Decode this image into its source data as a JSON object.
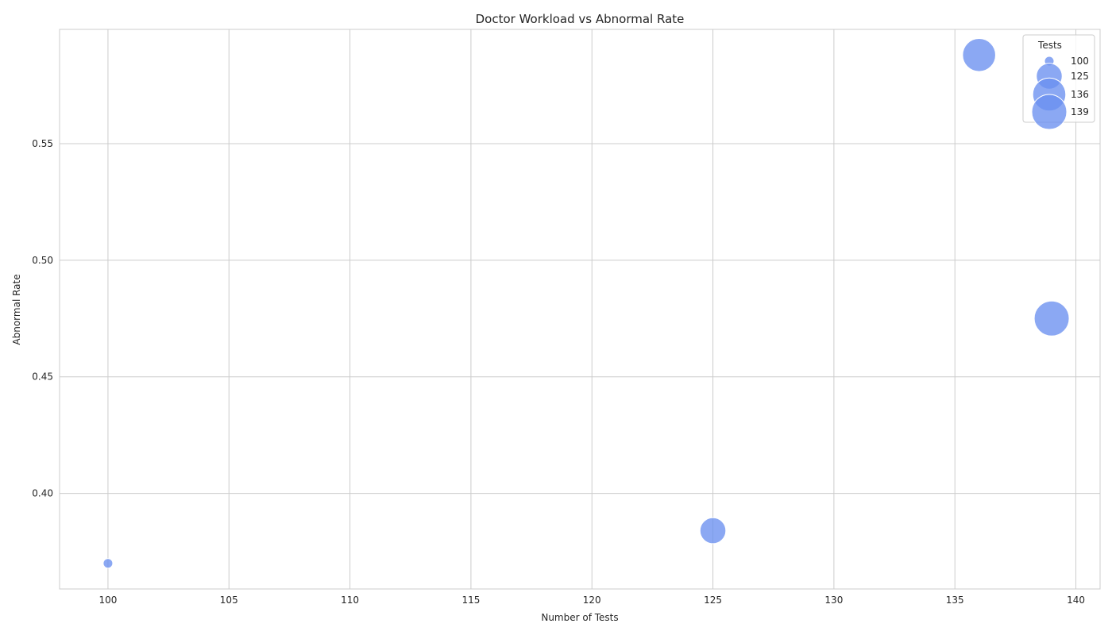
{
  "chart_data": {
    "type": "scatter",
    "title": "Doctor Workload vs Abnormal Rate",
    "xlabel": "Number of Tests",
    "ylabel": "Abnormal Rate",
    "xlim": [
      98,
      141
    ],
    "ylim": [
      0.359,
      0.599
    ],
    "xticks": [
      100,
      105,
      110,
      115,
      120,
      125,
      130,
      135,
      140
    ],
    "xtick_labels": [
      "100",
      "105",
      "110",
      "115",
      "120",
      "125",
      "130",
      "135",
      "140"
    ],
    "yticks": [
      0.4,
      0.45,
      0.5,
      0.55
    ],
    "ytick_labels": [
      "0.40",
      "0.45",
      "0.50",
      "0.55"
    ],
    "grid": true,
    "size_range": [
      100,
      139
    ],
    "color": "#6a8ff0",
    "points": [
      {
        "x": 100,
        "y": 0.37,
        "size": 100
      },
      {
        "x": 125,
        "y": 0.384,
        "size": 125
      },
      {
        "x": 136,
        "y": 0.588,
        "size": 136
      },
      {
        "x": 139,
        "y": 0.475,
        "size": 139
      }
    ],
    "legend": {
      "title": "Tests",
      "position": "top-right",
      "entries": [
        {
          "label": "100",
          "size": 100
        },
        {
          "label": "125",
          "size": 125
        },
        {
          "label": "136",
          "size": 136
        },
        {
          "label": "139",
          "size": 139
        }
      ]
    }
  }
}
